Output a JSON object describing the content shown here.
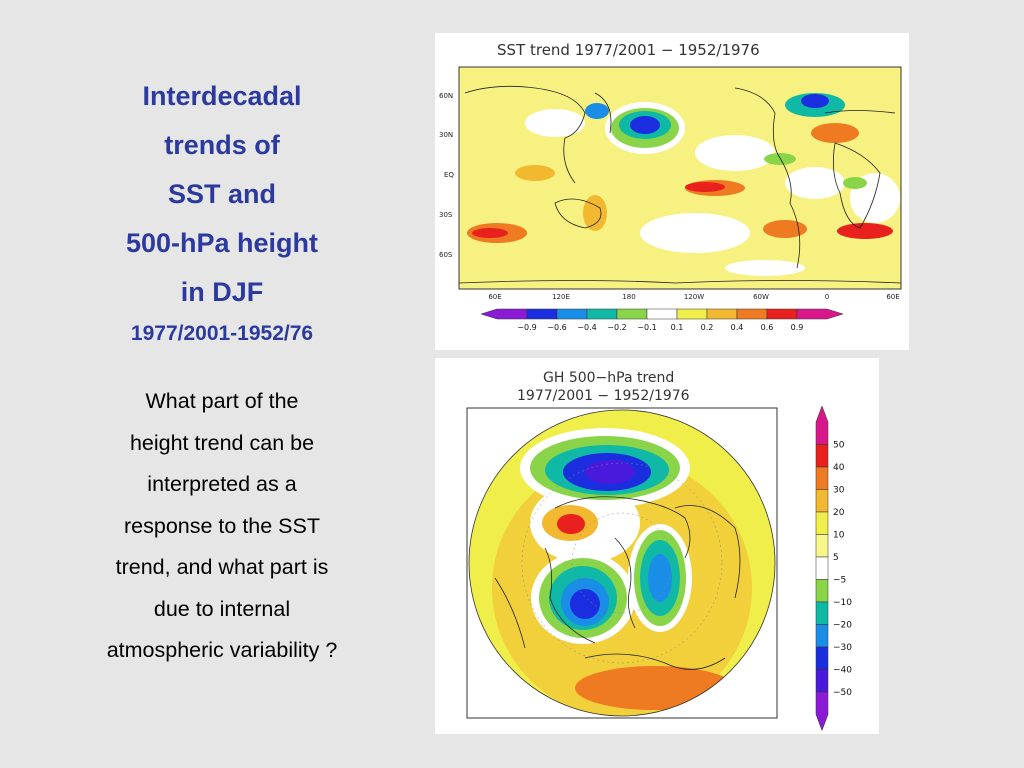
{
  "slide": {
    "title_lines": [
      "Interdecadal",
      "trends of",
      "SST and",
      "500-hPa height",
      "in DJF"
    ],
    "period": "1977/2001-1952/76",
    "question_lines": [
      "What part of the",
      "height  trend can be",
      "interpreted as a",
      "response to the SST",
      "trend, and what part is",
      "due to internal",
      "atmospheric variability ?"
    ]
  },
  "sst_map": {
    "title": "SST trend    1977/2001 − 1952/1976",
    "lat_labels": [
      "60N",
      "30N",
      "EQ",
      "30S",
      "60S"
    ],
    "lon_labels": [
      "60E",
      "120E",
      "180",
      "120W",
      "60W",
      "0",
      "60E"
    ],
    "colorbar": {
      "labels": [
        "−0.9",
        "−0.6",
        "−0.4",
        "−0.2",
        "−0.1",
        "0.1",
        "0.2",
        "0.4",
        "0.6",
        "0.9"
      ],
      "colors": [
        "#8a1ad6",
        "#1a2ee0",
        "#1a8ee6",
        "#10b9a6",
        "#8ad44a",
        "#ffffff",
        "#f0ee4a",
        "#f2b830",
        "#ee7a22",
        "#e8201e",
        "#d8188a"
      ]
    }
  },
  "gh_map": {
    "title_line1": "GH 500−hPa trend",
    "title_line2": "1977/2001 − 1952/1976",
    "colorbar": {
      "labels": [
        "50",
        "40",
        "30",
        "20",
        "10",
        "5",
        "−5",
        "−10",
        "−20",
        "−30",
        "−40",
        "−50"
      ],
      "colors": [
        "#d8188a",
        "#e8201e",
        "#ee7a22",
        "#f2b830",
        "#f0ee4a",
        "#f6f68a",
        "#ffffff",
        "#8ad44a",
        "#10b9a6",
        "#1a8ee6",
        "#1a2ee0",
        "#4a1adc",
        "#8a1ad6"
      ]
    }
  }
}
